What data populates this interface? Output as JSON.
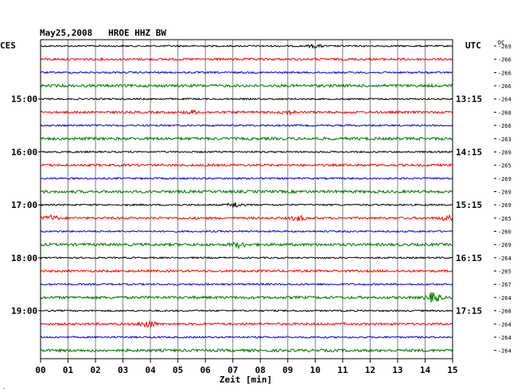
{
  "chart_data": {
    "type": "line",
    "title": "May25,2008   HROE HHZ BW",
    "left_header": "CES",
    "right_header": "UTC",
    "dc_header": "DC",
    "xlabel": "Zeit [min]",
    "x_ticks": [
      "00",
      "01",
      "02",
      "03",
      "04",
      "05",
      "06",
      "07",
      "08",
      "09",
      "10",
      "11",
      "12",
      "13",
      "14",
      "15"
    ],
    "xlim": [
      0,
      15
    ],
    "trace_colors": [
      "#000000",
      "#ff0000",
      "#0000ff",
      "#007700"
    ],
    "left_time_labels": [
      {
        "trace": 4,
        "label": "15:00"
      },
      {
        "trace": 8,
        "label": "16:00"
      },
      {
        "trace": 12,
        "label": "17:00"
      },
      {
        "trace": 16,
        "label": "18:00"
      },
      {
        "trace": 20,
        "label": "19:00"
      }
    ],
    "right_time_labels": [
      {
        "trace": 4,
        "label": "13:15"
      },
      {
        "trace": 8,
        "label": "14:15"
      },
      {
        "trace": 12,
        "label": "15:15"
      },
      {
        "trace": 16,
        "label": "16:15"
      },
      {
        "trace": 20,
        "label": "17:15"
      }
    ],
    "dc_values": [
      "-269",
      "-266",
      "-266",
      "-266",
      "-264",
      "-268",
      "-266",
      "-263",
      "-269",
      "-265",
      "-269",
      "-269",
      "-269",
      "-265",
      "-260",
      "-269",
      "-264",
      "-265",
      "-267",
      "-264",
      "-268",
      "-264",
      "-264",
      "-264"
    ],
    "event_marks": [
      {
        "trace": 0,
        "minute": 10.0,
        "amplitude": 2
      },
      {
        "trace": 5,
        "minute": 5.5,
        "amplitude": 2
      },
      {
        "trace": 5,
        "minute": 9.0,
        "amplitude": 2
      },
      {
        "trace": 12,
        "minute": 7.1,
        "amplitude": 3
      },
      {
        "trace": 13,
        "minute": 0.4,
        "amplitude": 3
      },
      {
        "trace": 13,
        "minute": 9.4,
        "amplitude": 3
      },
      {
        "trace": 13,
        "minute": 14.8,
        "amplitude": 3
      },
      {
        "trace": 15,
        "minute": 7.2,
        "amplitude": 3
      },
      {
        "trace": 19,
        "minute": 14.3,
        "amplitude": 6
      },
      {
        "trace": 21,
        "minute": 3.9,
        "amplitude": 5
      }
    ]
  }
}
